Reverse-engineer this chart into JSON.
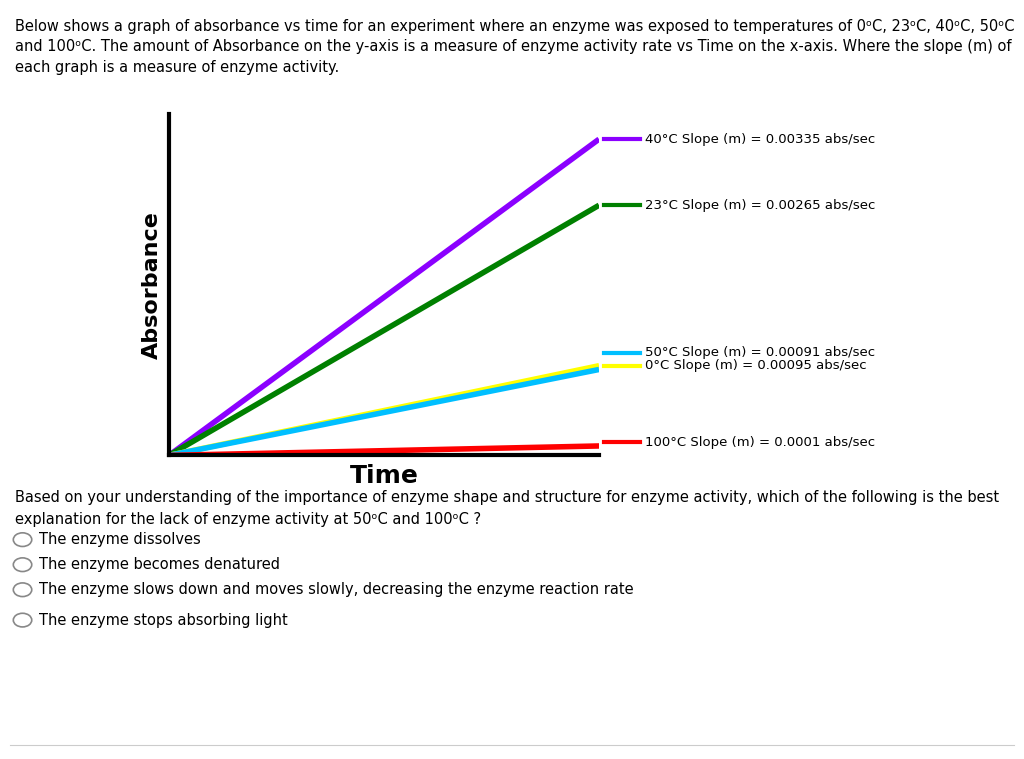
{
  "title_text": "Below shows a graph of absorbance vs time for an experiment where an enzyme was exposed to temperatures of 0ᵒC, 23ᵒC, 40ᵒC, 50ᵒC\nand 100ᵒC. The amount of Absorbance on the y-axis is a measure of enzyme activity rate vs Time on the x-axis. Where the slope (m) of\neach graph is a measure of enzyme activity.",
  "xlabel": "Time",
  "ylabel": "Absorbance",
  "lines": [
    {
      "slope": 0.00335,
      "color": "#8B00FF",
      "label": "40°C Slope (m) = 0.00335 abs/sec"
    },
    {
      "slope": 0.00265,
      "color": "#008000",
      "label": "23°C Slope (m) = 0.00265 abs/sec"
    },
    {
      "slope": 0.00095,
      "color": "#FFFF00",
      "label": "0°C Slope (m) = 0.00095 abs/sec"
    },
    {
      "slope": 0.00091,
      "color": "#00BFFF",
      "label": "50°C Slope (m) = 0.00091 abs/sec"
    },
    {
      "slope": 0.0001,
      "color": "#FF0000",
      "label": "100°C Slope (m) = 0.0001 abs/sec"
    }
  ],
  "x_max": 100,
  "question_text": "Based on your understanding of the importance of enzyme shape and structure for enzyme activity, which of the following is the best\nexplanation for the lack of enzyme activity at 50ᵒC and 100ᵒC ?",
  "options": [
    "The enzyme dissolves",
    "The enzyme becomes denatured",
    "The enzyme slows down and moves slowly, decreasing the enzyme reaction rate",
    "The enzyme stops absorbing light"
  ],
  "bg_color": "#FFFFFF",
  "axes_color": "#000000",
  "line_width": 4.0,
  "annotation_fontsize": 9.5,
  "label_offsets_y": [
    0.0,
    0.0,
    0.0,
    0.0,
    0.0
  ]
}
